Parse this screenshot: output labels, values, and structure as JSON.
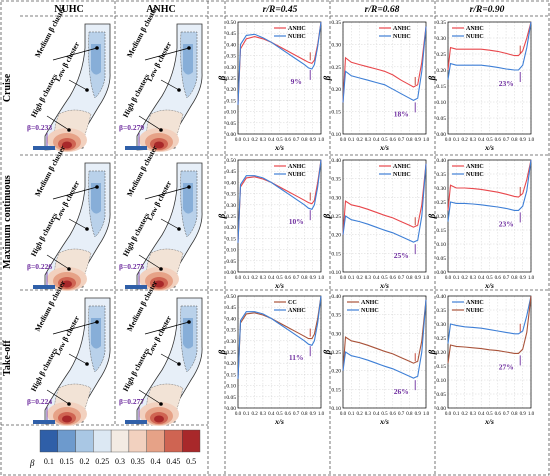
{
  "col_headers": [
    "NUHC",
    "ANHC",
    "r/R=0.45",
    "r/R=0.68",
    "r/R=0.90"
  ],
  "row_headers": [
    "Cruise",
    "Maximum continuous",
    "Take-off"
  ],
  "contour_labels": {
    "medium": "Medium β cluster",
    "low": "Low β cluster",
    "high": "High β clusters"
  },
  "contour_beta": [
    [
      "β=0.233",
      "β=0.279"
    ],
    [
      "β=0.226",
      "β=0.275"
    ],
    [
      "β=0.224",
      "β=0.277"
    ]
  ],
  "colorbar": {
    "label": "β",
    "ticks": [
      "0.1",
      "0.15",
      "0.2",
      "0.25",
      "0.3",
      "0.35",
      "0.4",
      "0.45",
      "0.5"
    ],
    "colors": [
      "#2f5fa8",
      "#6d9acd",
      "#a9c7e4",
      "#dce8f3",
      "#f3ebe3",
      "#f2d1bf",
      "#e6a287",
      "#cf6452",
      "#a8282a"
    ]
  },
  "colors": {
    "red": "#e8474c",
    "blue": "#3e7fd6",
    "brown": "#a9533a",
    "annot": "#7030a0",
    "grid": "#cccccc"
  },
  "chart_data": [
    {
      "type": "line",
      "row": "Cruise",
      "col": "r/R=0.45",
      "xlabel": "x/s",
      "ylabel": "β",
      "ylim": [
        0,
        0.5
      ],
      "xlim": [
        0,
        1
      ],
      "yticks": [
        "0.00",
        "0.05",
        "0.10",
        "0.15",
        "0.20",
        "0.25",
        "0.30",
        "0.35",
        "0.40",
        "0.45",
        "0.50"
      ],
      "xticks": [
        "0.0",
        "0.1",
        "0.2",
        "0.3",
        "0.4",
        "0.5",
        "0.6",
        "0.7",
        "0.8",
        "0.9",
        "1.0"
      ],
      "legend": "top-right",
      "annotation": "9%",
      "series": [
        {
          "name": "ANHC",
          "color": "red",
          "x": [
            0,
            0.03,
            0.1,
            0.2,
            0.3,
            0.4,
            0.5,
            0.6,
            0.7,
            0.8,
            0.85,
            0.89,
            0.92,
            0.96,
            1.0
          ],
          "y": [
            0.13,
            0.38,
            0.425,
            0.435,
            0.425,
            0.41,
            0.39,
            0.37,
            0.35,
            0.33,
            0.32,
            0.315,
            0.33,
            0.4,
            0.5
          ]
        },
        {
          "name": "NUHC",
          "color": "blue",
          "x": [
            0,
            0.03,
            0.1,
            0.2,
            0.3,
            0.4,
            0.5,
            0.6,
            0.7,
            0.8,
            0.85,
            0.89,
            0.92,
            0.96,
            1.0
          ],
          "y": [
            0.13,
            0.4,
            0.44,
            0.445,
            0.43,
            0.41,
            0.385,
            0.36,
            0.335,
            0.31,
            0.295,
            0.29,
            0.31,
            0.39,
            0.5
          ]
        }
      ]
    },
    {
      "type": "line",
      "row": "Cruise",
      "col": "r/R=0.68",
      "xlabel": "x/s",
      "ylabel": "β",
      "ylim": [
        0.1,
        0.35
      ],
      "xlim": [
        0,
        1
      ],
      "yticks": [
        "0.10",
        "0.15",
        "0.20",
        "0.25",
        "0.30",
        "0.35"
      ],
      "xticks": [
        "0.0",
        "0.1",
        "0.2",
        "0.3",
        "0.4",
        "0.5",
        "0.6",
        "0.7",
        "0.8",
        "0.9",
        "1.0"
      ],
      "legend": "top-right",
      "annotation": "18%",
      "series": [
        {
          "name": "ANHC",
          "color": "red",
          "x": [
            0,
            0.03,
            0.1,
            0.2,
            0.3,
            0.4,
            0.5,
            0.6,
            0.7,
            0.8,
            0.85,
            0.9,
            0.95,
            1.0
          ],
          "y": [
            0.17,
            0.27,
            0.26,
            0.255,
            0.25,
            0.245,
            0.24,
            0.232,
            0.22,
            0.21,
            0.205,
            0.21,
            0.26,
            0.34
          ]
        },
        {
          "name": "NUHC",
          "color": "blue",
          "x": [
            0,
            0.03,
            0.1,
            0.2,
            0.3,
            0.4,
            0.5,
            0.6,
            0.7,
            0.8,
            0.85,
            0.9,
            0.95,
            1.0
          ],
          "y": [
            0.17,
            0.24,
            0.23,
            0.225,
            0.22,
            0.215,
            0.21,
            0.2,
            0.19,
            0.18,
            0.175,
            0.18,
            0.24,
            0.34
          ]
        }
      ]
    },
    {
      "type": "line",
      "row": "Cruise",
      "col": "r/R=0.90",
      "xlabel": "x/s",
      "ylabel": "β",
      "ylim": [
        0,
        0.35
      ],
      "xlim": [
        0,
        1
      ],
      "yticks": [
        "0.00",
        "0.05",
        "0.10",
        "0.15",
        "0.20",
        "0.25",
        "0.30",
        "0.35"
      ],
      "xticks": [
        "0.0",
        "0.1",
        "0.2",
        "0.3",
        "0.4",
        "0.5",
        "0.6",
        "0.7",
        "0.8",
        "0.9",
        "1.0"
      ],
      "legend": "top-left",
      "annotation": "23%",
      "series": [
        {
          "name": "ANHC",
          "color": "red",
          "x": [
            0,
            0.03,
            0.1,
            0.2,
            0.3,
            0.4,
            0.5,
            0.6,
            0.7,
            0.8,
            0.85,
            0.9,
            0.95,
            1.0
          ],
          "y": [
            0.2,
            0.27,
            0.265,
            0.265,
            0.265,
            0.265,
            0.262,
            0.258,
            0.252,
            0.245,
            0.245,
            0.26,
            0.3,
            0.35
          ]
        },
        {
          "name": "NUHC",
          "color": "blue",
          "x": [
            0,
            0.03,
            0.1,
            0.2,
            0.3,
            0.4,
            0.5,
            0.6,
            0.7,
            0.8,
            0.85,
            0.9,
            0.95,
            1.0
          ],
          "y": [
            0.17,
            0.22,
            0.215,
            0.215,
            0.215,
            0.215,
            0.212,
            0.208,
            0.203,
            0.2,
            0.2,
            0.215,
            0.27,
            0.35
          ]
        }
      ]
    },
    {
      "type": "line",
      "row": "Maximum continuous",
      "col": "r/R=0.45",
      "xlabel": "x/s",
      "ylabel": "β",
      "ylim": [
        0,
        0.5
      ],
      "xlim": [
        0,
        1
      ],
      "yticks": [
        "0.00",
        "0.05",
        "0.10",
        "0.15",
        "0.20",
        "0.25",
        "0.30",
        "0.35",
        "0.40",
        "0.45",
        "0.50"
      ],
      "xticks": [
        "0.0",
        "0.1",
        "0.2",
        "0.3",
        "0.4",
        "0.5",
        "0.6",
        "0.7",
        "0.8",
        "0.9",
        "1.0"
      ],
      "legend": "top-right",
      "annotation": "10%",
      "series": [
        {
          "name": "ANHC",
          "color": "red",
          "x": [
            0,
            0.03,
            0.1,
            0.2,
            0.3,
            0.4,
            0.5,
            0.6,
            0.7,
            0.8,
            0.85,
            0.89,
            0.92,
            0.96,
            1.0
          ],
          "y": [
            0.13,
            0.38,
            0.42,
            0.425,
            0.415,
            0.4,
            0.38,
            0.36,
            0.34,
            0.32,
            0.31,
            0.305,
            0.32,
            0.4,
            0.5
          ]
        },
        {
          "name": "NUHC",
          "color": "blue",
          "x": [
            0,
            0.03,
            0.1,
            0.2,
            0.3,
            0.4,
            0.5,
            0.6,
            0.7,
            0.8,
            0.85,
            0.89,
            0.92,
            0.96,
            1.0
          ],
          "y": [
            0.13,
            0.39,
            0.43,
            0.43,
            0.42,
            0.4,
            0.375,
            0.35,
            0.325,
            0.3,
            0.285,
            0.28,
            0.3,
            0.38,
            0.5
          ]
        }
      ]
    },
    {
      "type": "line",
      "row": "Maximum continuous",
      "col": "r/R=0.68",
      "xlabel": "x/s",
      "ylabel": "β",
      "ylim": [
        0.1,
        0.4
      ],
      "xlim": [
        0,
        1
      ],
      "yticks": [
        "0.10",
        "0.15",
        "0.20",
        "0.25",
        "0.30",
        "0.35",
        "0.40"
      ],
      "xticks": [
        "0.0",
        "0.1",
        "0.2",
        "0.3",
        "0.4",
        "0.5",
        "0.6",
        "0.7",
        "0.8",
        "0.9",
        "1.0"
      ],
      "legend": "top-right",
      "annotation": "25%",
      "series": [
        {
          "name": "ANHC",
          "color": "red",
          "x": [
            0,
            0.03,
            0.1,
            0.2,
            0.3,
            0.4,
            0.5,
            0.6,
            0.7,
            0.8,
            0.85,
            0.9,
            0.95,
            1.0
          ],
          "y": [
            0.2,
            0.29,
            0.28,
            0.275,
            0.268,
            0.26,
            0.252,
            0.245,
            0.235,
            0.225,
            0.22,
            0.225,
            0.28,
            0.39
          ]
        },
        {
          "name": "NUHC",
          "color": "blue",
          "x": [
            0,
            0.03,
            0.1,
            0.2,
            0.3,
            0.4,
            0.5,
            0.6,
            0.7,
            0.8,
            0.85,
            0.9,
            0.95,
            1.0
          ],
          "y": [
            0.2,
            0.25,
            0.24,
            0.235,
            0.228,
            0.22,
            0.212,
            0.205,
            0.195,
            0.185,
            0.18,
            0.185,
            0.25,
            0.39
          ]
        }
      ]
    },
    {
      "type": "line",
      "row": "Maximum continuous",
      "col": "r/R=0.90",
      "xlabel": "x/s",
      "ylabel": "β",
      "ylim": [
        0,
        0.4
      ],
      "xlim": [
        0,
        1
      ],
      "yticks": [
        "0.00",
        "0.05",
        "0.10",
        "0.15",
        "0.20",
        "0.25",
        "0.30",
        "0.35",
        "0.40"
      ],
      "xticks": [
        "0.0",
        "0.1",
        "0.2",
        "0.3",
        "0.4",
        "0.5",
        "0.6",
        "0.7",
        "0.8",
        "0.9",
        "1.0"
      ],
      "legend": "top-left",
      "annotation": "23%",
      "series": [
        {
          "name": "ANHC",
          "color": "red",
          "x": [
            0,
            0.03,
            0.1,
            0.2,
            0.3,
            0.4,
            0.5,
            0.6,
            0.7,
            0.8,
            0.85,
            0.9,
            0.95,
            1.0
          ],
          "y": [
            0.22,
            0.31,
            0.3,
            0.3,
            0.298,
            0.295,
            0.29,
            0.285,
            0.278,
            0.27,
            0.268,
            0.28,
            0.33,
            0.4
          ]
        },
        {
          "name": "NUHC",
          "color": "blue",
          "x": [
            0,
            0.03,
            0.1,
            0.2,
            0.3,
            0.4,
            0.5,
            0.6,
            0.7,
            0.8,
            0.85,
            0.9,
            0.95,
            1.0
          ],
          "y": [
            0.18,
            0.25,
            0.245,
            0.245,
            0.243,
            0.24,
            0.236,
            0.232,
            0.227,
            0.22,
            0.22,
            0.235,
            0.29,
            0.4
          ]
        }
      ]
    },
    {
      "type": "line",
      "row": "Take-off",
      "col": "r/R=0.45",
      "xlabel": "x/s",
      "ylabel": "β",
      "ylim": [
        0,
        0.5
      ],
      "xlim": [
        0,
        1
      ],
      "yticks": [
        "0.00",
        "0.05",
        "0.10",
        "0.15",
        "0.20",
        "0.25",
        "0.30",
        "0.35",
        "0.40",
        "0.45",
        "0.50"
      ],
      "xticks": [
        "0.0",
        "0.1",
        "0.2",
        "0.3",
        "0.4",
        "0.5",
        "0.6",
        "0.7",
        "0.8",
        "0.9",
        "1.0"
      ],
      "legend": "top-right",
      "annotation": "11%",
      "series": [
        {
          "name": "CC",
          "color": "brown",
          "x": [
            0,
            0.03,
            0.1,
            0.2,
            0.3,
            0.4,
            0.5,
            0.6,
            0.7,
            0.8,
            0.85,
            0.89,
            0.92,
            0.96,
            1.0
          ],
          "y": [
            0.13,
            0.38,
            0.42,
            0.425,
            0.415,
            0.4,
            0.38,
            0.36,
            0.34,
            0.32,
            0.31,
            0.31,
            0.33,
            0.4,
            0.5
          ]
        },
        {
          "name": "ANHC",
          "color": "blue",
          "x": [
            0,
            0.03,
            0.1,
            0.2,
            0.3,
            0.4,
            0.5,
            0.6,
            0.7,
            0.8,
            0.85,
            0.89,
            0.92,
            0.96,
            1.0
          ],
          "y": [
            0.13,
            0.39,
            0.43,
            0.43,
            0.42,
            0.4,
            0.375,
            0.35,
            0.325,
            0.3,
            0.285,
            0.28,
            0.3,
            0.38,
            0.5
          ]
        }
      ]
    },
    {
      "type": "line",
      "row": "Take-off",
      "col": "r/R=0.68",
      "xlabel": "x/s",
      "ylabel": "β",
      "ylim": [
        0.1,
        0.4
      ],
      "xlim": [
        0,
        1
      ],
      "yticks": [
        "0.10",
        "0.15",
        "0.20",
        "0.25",
        "0.30",
        "0.35",
        "0.40"
      ],
      "xticks": [
        "0.0",
        "0.1",
        "0.2",
        "0.3",
        "0.4",
        "0.5",
        "0.6",
        "0.7",
        "0.8",
        "0.9",
        "1.0"
      ],
      "legend": "top-left",
      "annotation": "26%",
      "series": [
        {
          "name": "ANHC",
          "color": "brown",
          "x": [
            0,
            0.03,
            0.1,
            0.2,
            0.3,
            0.4,
            0.5,
            0.6,
            0.7,
            0.8,
            0.85,
            0.9,
            0.95,
            1.0
          ],
          "y": [
            0.2,
            0.29,
            0.28,
            0.275,
            0.268,
            0.26,
            0.252,
            0.245,
            0.235,
            0.225,
            0.22,
            0.225,
            0.28,
            0.39
          ]
        },
        {
          "name": "NUHC",
          "color": "blue",
          "x": [
            0,
            0.03,
            0.1,
            0.2,
            0.3,
            0.4,
            0.5,
            0.6,
            0.7,
            0.8,
            0.85,
            0.9,
            0.95,
            1.0
          ],
          "y": [
            0.2,
            0.25,
            0.24,
            0.235,
            0.228,
            0.22,
            0.212,
            0.205,
            0.195,
            0.185,
            0.18,
            0.185,
            0.25,
            0.39
          ]
        }
      ]
    },
    {
      "type": "line",
      "row": "Take-off",
      "col": "r/R=0.90",
      "xlabel": "x/s",
      "ylabel": "β",
      "ylim": [
        0,
        0.4
      ],
      "xlim": [
        0,
        1
      ],
      "yticks": [
        "0.00",
        "0.05",
        "0.10",
        "0.15",
        "0.20",
        "0.25",
        "0.30",
        "0.35",
        "0.40"
      ],
      "xticks": [
        "0.0",
        "0.1",
        "0.2",
        "0.3",
        "0.4",
        "0.5",
        "0.6",
        "0.7",
        "0.8",
        "0.9",
        "1.0"
      ],
      "legend": "top-left",
      "annotation": "27%",
      "series": [
        {
          "name": "ANHC",
          "color": "blue",
          "x": [
            0,
            0.03,
            0.1,
            0.2,
            0.3,
            0.4,
            0.5,
            0.6,
            0.7,
            0.8,
            0.85,
            0.9,
            0.95,
            1.0
          ],
          "y": [
            0.23,
            0.3,
            0.295,
            0.29,
            0.288,
            0.285,
            0.28,
            0.275,
            0.27,
            0.265,
            0.265,
            0.275,
            0.33,
            0.4
          ]
        },
        {
          "name": "NUHC",
          "color": "brown",
          "x": [
            0,
            0.03,
            0.1,
            0.2,
            0.3,
            0.4,
            0.5,
            0.6,
            0.7,
            0.8,
            0.85,
            0.9,
            0.95,
            1.0
          ],
          "y": [
            0.16,
            0.225,
            0.22,
            0.218,
            0.215,
            0.212,
            0.208,
            0.205,
            0.2,
            0.195,
            0.195,
            0.21,
            0.27,
            0.4
          ]
        }
      ]
    }
  ]
}
